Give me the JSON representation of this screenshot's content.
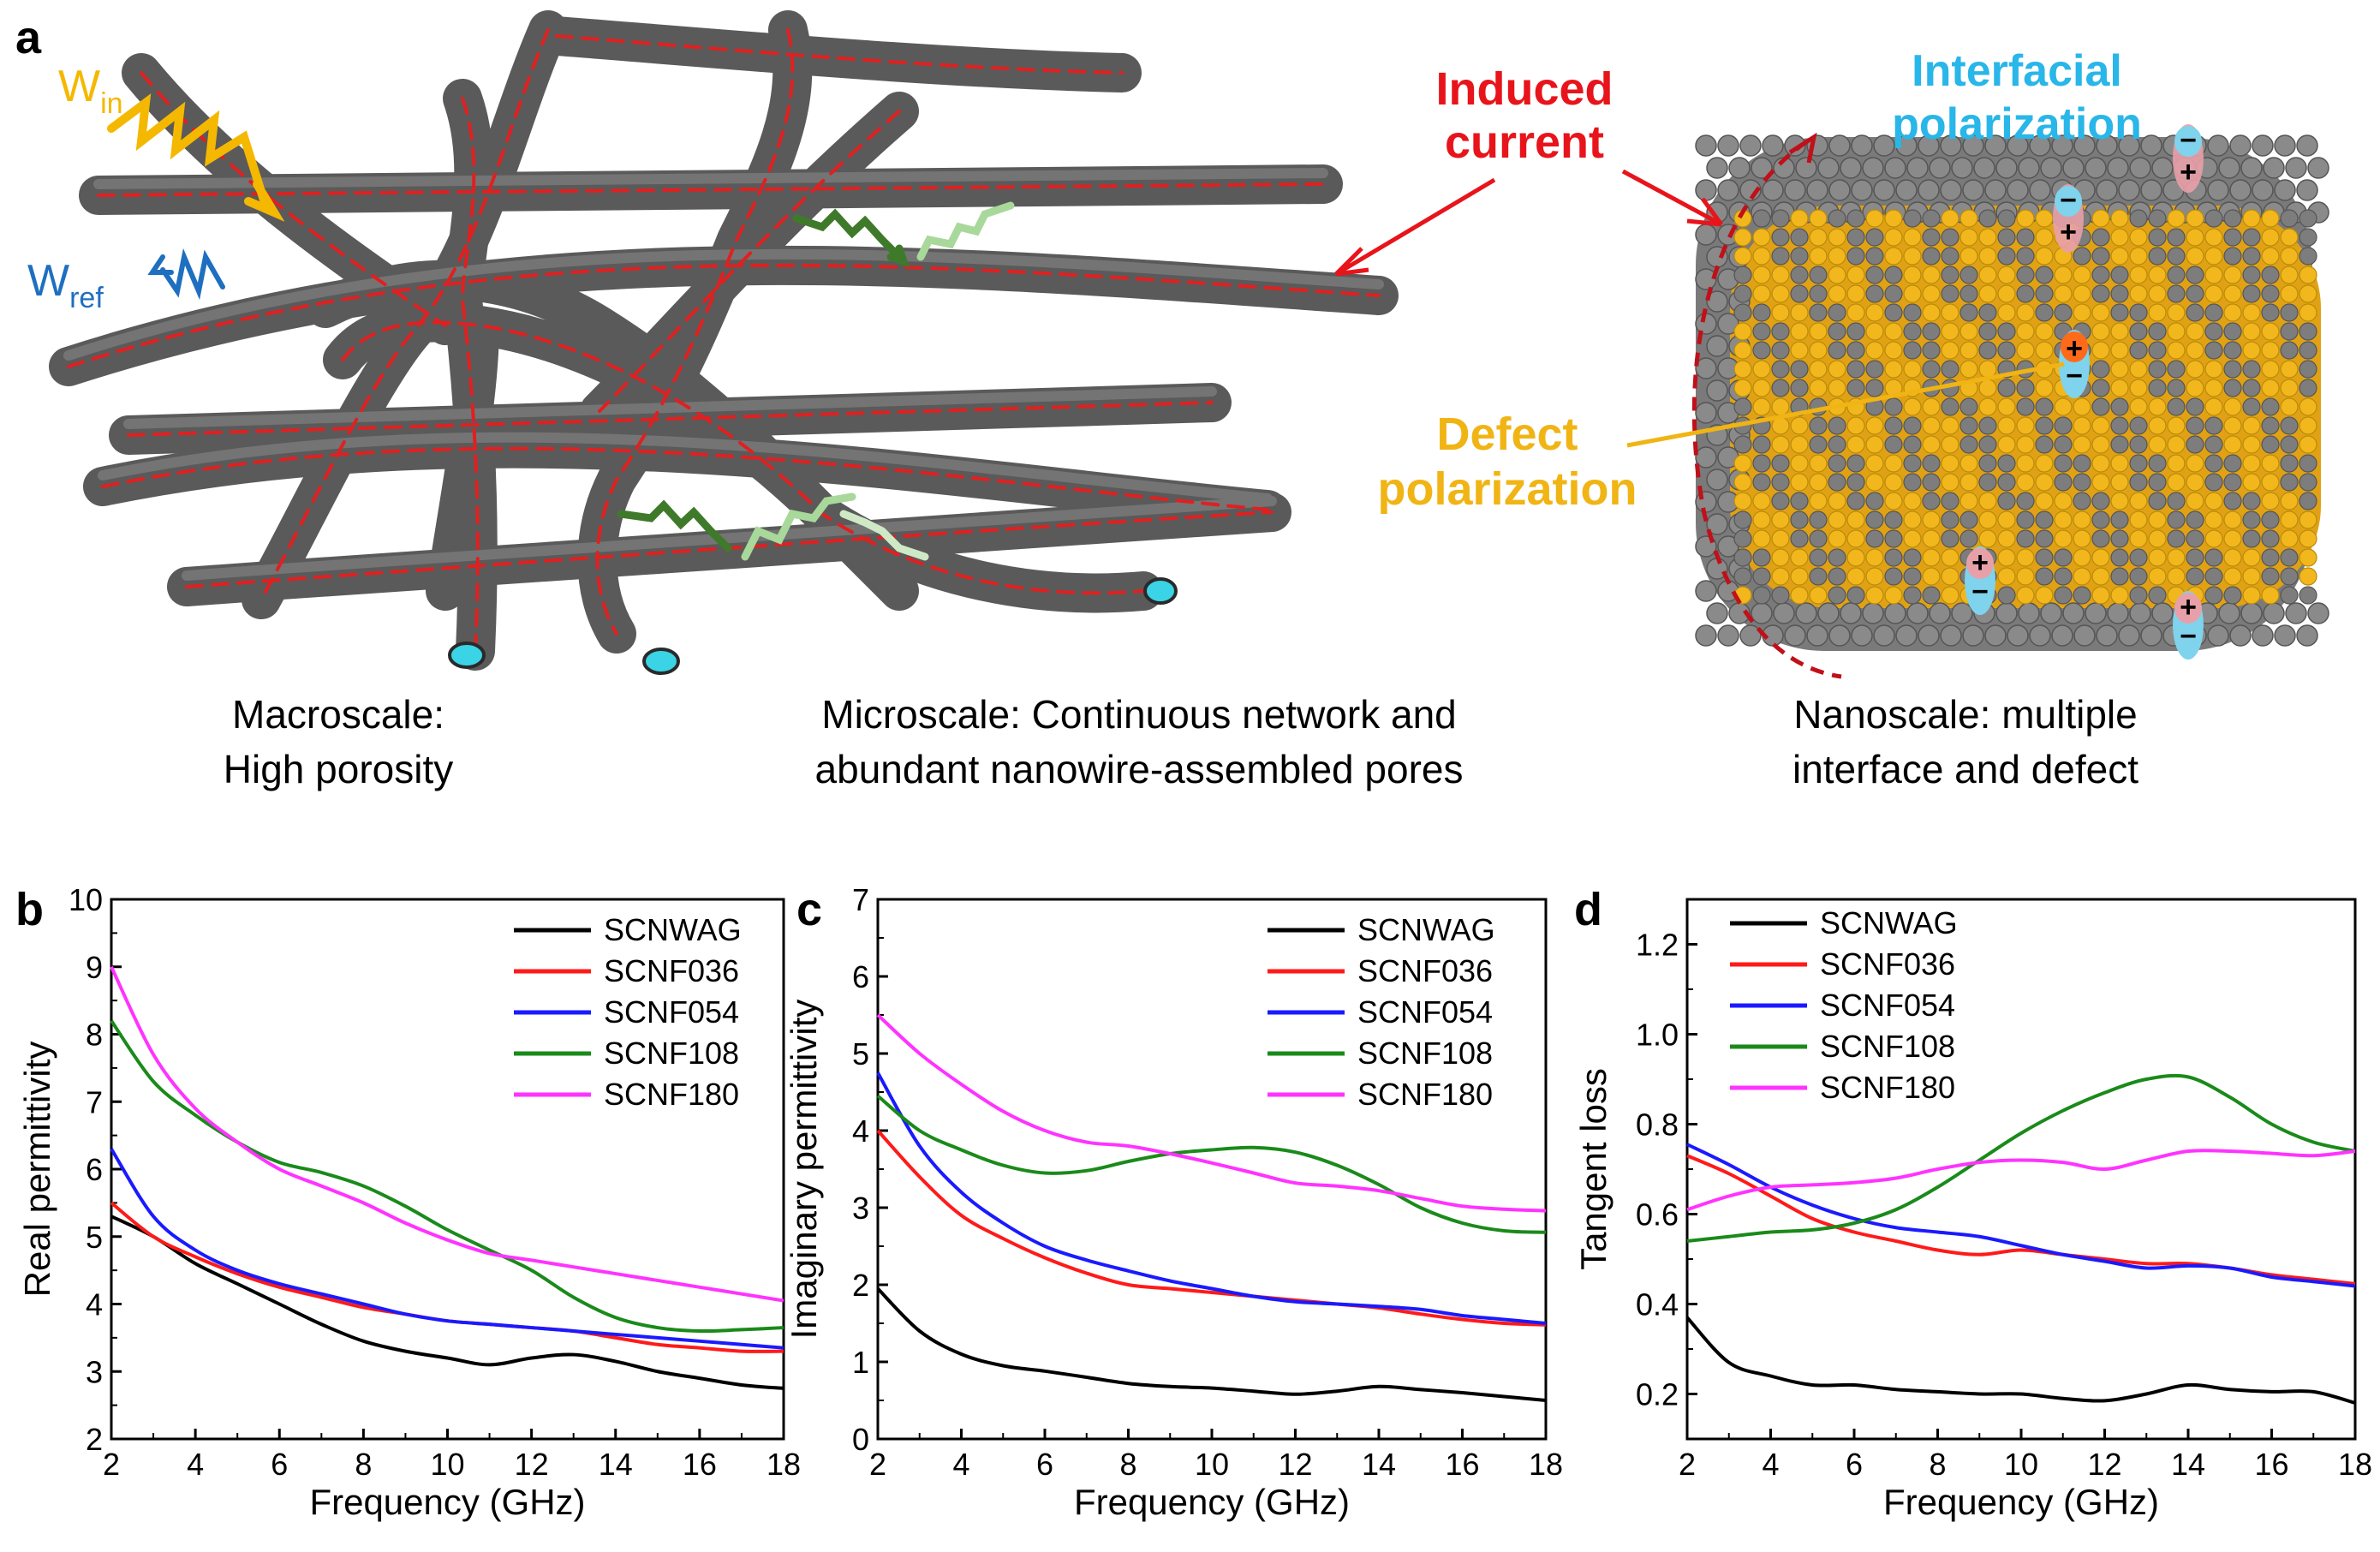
{
  "panel_a": {
    "label": "a",
    "w_in": "W",
    "w_in_sub": "in",
    "w_ref": "W",
    "w_ref_sub": "ref",
    "induced_current": [
      "Induced",
      "current"
    ],
    "interfacial_polarization": [
      "Interfacial",
      "polarization"
    ],
    "defect_polarization": [
      "Defect",
      "polarization"
    ],
    "captions": {
      "macro": [
        "Macroscale:",
        "High porosity"
      ],
      "micro": [
        "Microscale: Continuous network and",
        "abundant nanowire-assembled pores"
      ],
      "nano": [
        "Nanoscale: multiple",
        "interface and defect"
      ]
    },
    "colors": {
      "fiber": "#5a5a5a",
      "dash": "#e02020",
      "w_in": "#f5b800",
      "w_ref": "#1f6fc0",
      "induced": "#e8141b",
      "interfacial": "#29b6e8",
      "defect": "#f0b414",
      "atom_gray": "#7a7a7a",
      "atom_gold": "#f2b71c",
      "wave_dark": "#3f7a2a",
      "wave_light": "#a8d89a"
    }
  },
  "series_colors": {
    "SCNWAG": "#000000",
    "SCNF036": "#ff1a1a",
    "SCNF054": "#1a1aff",
    "SCNF108": "#1a8a1a",
    "SCNF180": "#ff33ff"
  },
  "chart_data": [
    {
      "panel": "b",
      "type": "line",
      "xlabel": "Frequency (GHz)",
      "ylabel": "Real permittivity",
      "xlim": [
        2,
        18
      ],
      "ylim": [
        2,
        10
      ],
      "xticks": [
        2,
        4,
        6,
        8,
        10,
        12,
        14,
        16,
        18
      ],
      "yticks": [
        2,
        3,
        4,
        5,
        6,
        7,
        8,
        9,
        10
      ],
      "legend": "top-right",
      "series": [
        {
          "name": "SCNWAG",
          "x": [
            2,
            3,
            4,
            5,
            6,
            7,
            8,
            9,
            10,
            11,
            12,
            13,
            14,
            15,
            16,
            17,
            18
          ],
          "y": [
            5.3,
            5.0,
            4.6,
            4.3,
            4.0,
            3.7,
            3.45,
            3.3,
            3.2,
            3.1,
            3.2,
            3.25,
            3.15,
            3.0,
            2.9,
            2.8,
            2.75
          ]
        },
        {
          "name": "SCNF036",
          "x": [
            2,
            3,
            4,
            5,
            6,
            7,
            8,
            9,
            10,
            11,
            12,
            13,
            14,
            15,
            16,
            17,
            18
          ],
          "y": [
            5.5,
            5.0,
            4.7,
            4.45,
            4.25,
            4.1,
            3.95,
            3.85,
            3.75,
            3.7,
            3.65,
            3.6,
            3.5,
            3.4,
            3.35,
            3.3,
            3.3
          ]
        },
        {
          "name": "SCNF054",
          "x": [
            2,
            3,
            4,
            5,
            6,
            7,
            8,
            9,
            10,
            11,
            12,
            13,
            14,
            15,
            16,
            17,
            18
          ],
          "y": [
            6.3,
            5.3,
            4.8,
            4.5,
            4.3,
            4.15,
            4.0,
            3.85,
            3.75,
            3.7,
            3.65,
            3.6,
            3.55,
            3.5,
            3.45,
            3.4,
            3.35
          ]
        },
        {
          "name": "SCNF108",
          "x": [
            2,
            3,
            4,
            5,
            6,
            7,
            8,
            9,
            10,
            11,
            12,
            13,
            14,
            15,
            16,
            17,
            18
          ],
          "y": [
            8.2,
            7.3,
            6.8,
            6.4,
            6.1,
            5.95,
            5.75,
            5.45,
            5.1,
            4.8,
            4.5,
            4.1,
            3.8,
            3.65,
            3.6,
            3.62,
            3.65
          ]
        },
        {
          "name": "SCNF180",
          "x": [
            2,
            3,
            4,
            5,
            6,
            7,
            8,
            9,
            10,
            11,
            12,
            13,
            14,
            15,
            16,
            17,
            18
          ],
          "y": [
            9.0,
            7.7,
            6.9,
            6.4,
            6.0,
            5.75,
            5.5,
            5.2,
            4.95,
            4.75,
            4.65,
            4.55,
            4.45,
            4.35,
            4.25,
            4.15,
            4.05
          ]
        }
      ]
    },
    {
      "panel": "c",
      "type": "line",
      "xlabel": "Frequency (GHz)",
      "ylabel": "Imaginary permittivity",
      "xlim": [
        2,
        18
      ],
      "ylim": [
        0,
        7
      ],
      "xticks": [
        2,
        4,
        6,
        8,
        10,
        12,
        14,
        16,
        18
      ],
      "yticks": [
        0,
        1,
        2,
        3,
        4,
        5,
        6,
        7
      ],
      "legend": "top-right",
      "series": [
        {
          "name": "SCNWAG",
          "x": [
            2,
            3,
            4,
            5,
            6,
            7,
            8,
            9,
            10,
            11,
            12,
            13,
            14,
            15,
            16,
            17,
            18
          ],
          "y": [
            1.95,
            1.4,
            1.1,
            0.95,
            0.88,
            0.8,
            0.72,
            0.68,
            0.66,
            0.62,
            0.58,
            0.62,
            0.68,
            0.64,
            0.6,
            0.55,
            0.5
          ]
        },
        {
          "name": "SCNF036",
          "x": [
            2,
            3,
            4,
            5,
            6,
            7,
            8,
            9,
            10,
            11,
            12,
            13,
            14,
            15,
            16,
            17,
            18
          ],
          "y": [
            4.0,
            3.4,
            2.9,
            2.6,
            2.35,
            2.15,
            2.0,
            1.95,
            1.9,
            1.85,
            1.8,
            1.75,
            1.7,
            1.62,
            1.55,
            1.5,
            1.48
          ]
        },
        {
          "name": "SCNF054",
          "x": [
            2,
            3,
            4,
            5,
            6,
            7,
            8,
            9,
            10,
            11,
            12,
            13,
            14,
            15,
            16,
            17,
            18
          ],
          "y": [
            4.75,
            3.8,
            3.2,
            2.8,
            2.5,
            2.32,
            2.18,
            2.05,
            1.95,
            1.85,
            1.78,
            1.75,
            1.72,
            1.68,
            1.6,
            1.55,
            1.5
          ]
        },
        {
          "name": "SCNF108",
          "x": [
            2,
            3,
            4,
            5,
            6,
            7,
            8,
            9,
            10,
            11,
            12,
            13,
            14,
            15,
            16,
            17,
            18
          ],
          "y": [
            4.45,
            4.0,
            3.75,
            3.55,
            3.45,
            3.48,
            3.6,
            3.7,
            3.75,
            3.78,
            3.72,
            3.55,
            3.3,
            3.0,
            2.8,
            2.7,
            2.68
          ]
        },
        {
          "name": "SCNF180",
          "x": [
            2,
            3,
            4,
            5,
            6,
            7,
            8,
            9,
            10,
            11,
            12,
            13,
            14,
            15,
            16,
            17,
            18
          ],
          "y": [
            5.5,
            5.0,
            4.6,
            4.25,
            4.0,
            3.85,
            3.8,
            3.7,
            3.58,
            3.45,
            3.32,
            3.28,
            3.22,
            3.12,
            3.02,
            2.98,
            2.96
          ]
        }
      ]
    },
    {
      "panel": "d",
      "type": "line",
      "xlabel": "Frequency (GHz)",
      "ylabel": "Tangent loss",
      "xlim": [
        2,
        18
      ],
      "ylim": [
        0.1,
        1.3
      ],
      "xticks": [
        2,
        4,
        6,
        8,
        10,
        12,
        14,
        16,
        18
      ],
      "yticks": [
        0.2,
        0.4,
        0.6,
        0.8,
        1.0,
        1.2
      ],
      "legend": "top-left",
      "series": [
        {
          "name": "SCNWAG",
          "x": [
            2,
            3,
            4,
            5,
            6,
            7,
            8,
            9,
            10,
            11,
            12,
            13,
            14,
            15,
            16,
            17,
            18
          ],
          "y": [
            0.37,
            0.27,
            0.24,
            0.22,
            0.22,
            0.21,
            0.205,
            0.2,
            0.2,
            0.19,
            0.185,
            0.2,
            0.22,
            0.21,
            0.205,
            0.205,
            0.18
          ]
        },
        {
          "name": "SCNF036",
          "x": [
            2,
            3,
            4,
            5,
            6,
            7,
            8,
            9,
            10,
            11,
            12,
            13,
            14,
            15,
            16,
            17,
            18
          ],
          "y": [
            0.73,
            0.69,
            0.64,
            0.59,
            0.56,
            0.54,
            0.52,
            0.51,
            0.52,
            0.51,
            0.5,
            0.49,
            0.49,
            0.48,
            0.465,
            0.455,
            0.445
          ]
        },
        {
          "name": "SCNF054",
          "x": [
            2,
            3,
            4,
            5,
            6,
            7,
            8,
            9,
            10,
            11,
            12,
            13,
            14,
            15,
            16,
            17,
            18
          ],
          "y": [
            0.755,
            0.71,
            0.66,
            0.62,
            0.59,
            0.57,
            0.56,
            0.55,
            0.53,
            0.51,
            0.495,
            0.48,
            0.485,
            0.48,
            0.46,
            0.45,
            0.44
          ]
        },
        {
          "name": "SCNF108",
          "x": [
            2,
            3,
            4,
            5,
            6,
            7,
            8,
            9,
            10,
            11,
            12,
            13,
            14,
            15,
            16,
            17,
            18
          ],
          "y": [
            0.54,
            0.55,
            0.56,
            0.565,
            0.58,
            0.61,
            0.66,
            0.72,
            0.78,
            0.83,
            0.87,
            0.9,
            0.905,
            0.86,
            0.8,
            0.76,
            0.74
          ]
        },
        {
          "name": "SCNF180",
          "x": [
            2,
            3,
            4,
            5,
            6,
            7,
            8,
            9,
            10,
            11,
            12,
            13,
            14,
            15,
            16,
            17,
            18
          ],
          "y": [
            0.61,
            0.64,
            0.66,
            0.665,
            0.67,
            0.68,
            0.7,
            0.715,
            0.72,
            0.715,
            0.7,
            0.72,
            0.74,
            0.74,
            0.735,
            0.73,
            0.74
          ]
        }
      ]
    }
  ]
}
